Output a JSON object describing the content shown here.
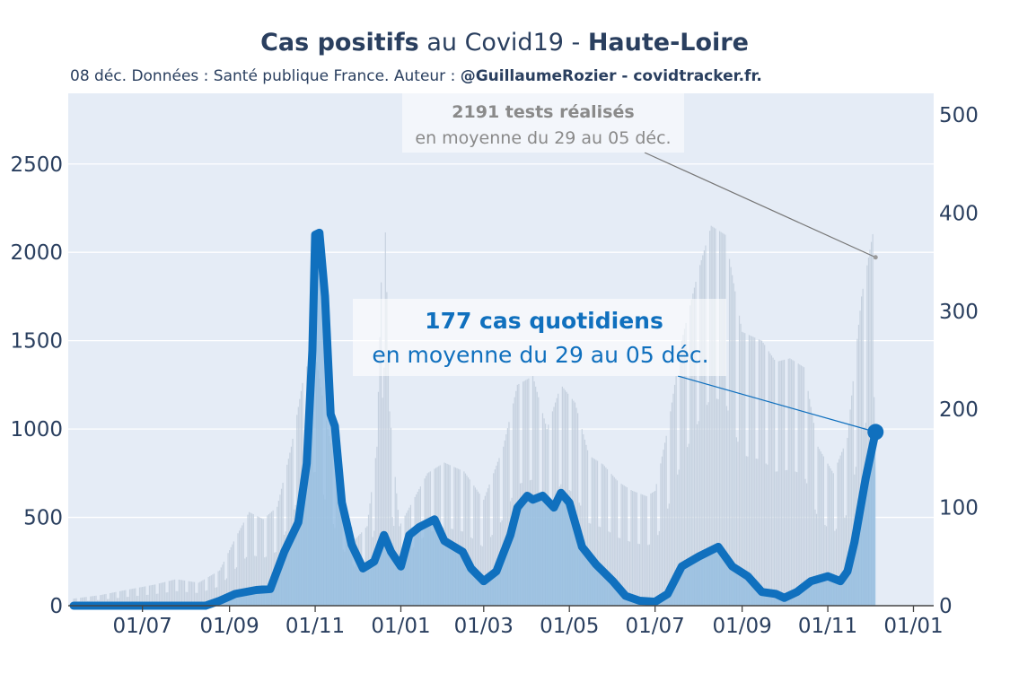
{
  "title": {
    "bold1": "Cas positifs",
    "normal": " au Covid19 - ",
    "bold2": "Haute-Loire"
  },
  "subtitle": {
    "normal": "08 déc. Données : Santé publique France. Auteur : ",
    "bold": "@GuillaumeRozier - covidtracker.fr."
  },
  "annotations": {
    "tests": {
      "line1": "2191 tests réalisés",
      "line2": "en moyenne du 29 au 05 déc."
    },
    "cases": {
      "line1": "177 cas quotidiens",
      "line2": "en moyenne du 29 au 05 déc."
    }
  },
  "colors": {
    "cases": "#1070be",
    "cases_fill": "#8fbbe0",
    "tests": "#c2cedd",
    "plot_bg": "#e5ecf6",
    "grid": "#ffffff"
  },
  "chart_data": {
    "type": "line",
    "x_axis": {
      "tick_labels": [
        "01/07",
        "01/09",
        "01/11",
        "01/01",
        "01/03",
        "01/05",
        "01/07",
        "01/09",
        "01/11",
        "01/01"
      ],
      "tick_dates": [
        "2020-07-01",
        "2020-09-01",
        "2020-11-01",
        "2021-01-01",
        "2021-03-01",
        "2021-05-01",
        "2021-07-01",
        "2021-09-01",
        "2021-11-01",
        "2022-01-01"
      ],
      "range": [
        "2020-05-13",
        "2022-01-09"
      ]
    },
    "y_left": {
      "range": [
        0,
        2900
      ],
      "ticks": [
        0,
        500,
        1000,
        1500,
        2000,
        2500
      ]
    },
    "y_right": {
      "range": [
        0,
        522
      ],
      "ticks": [
        0,
        100,
        200,
        300,
        400,
        500
      ]
    },
    "grid": true,
    "series": [
      {
        "axis": "left",
        "style": "bars",
        "points": [
          [
            "2020-05-13",
            40
          ],
          [
            "2020-06-01",
            60
          ],
          [
            "2020-06-20",
            90
          ],
          [
            "2020-07-10",
            120
          ],
          [
            "2020-07-25",
            150
          ],
          [
            "2020-08-10",
            130
          ],
          [
            "2020-08-25",
            200
          ],
          [
            "2020-09-05",
            380
          ],
          [
            "2020-09-15",
            530
          ],
          [
            "2020-09-25",
            490
          ],
          [
            "2020-10-05",
            560
          ],
          [
            "2020-10-15",
            900
          ],
          [
            "2020-10-25",
            1350
          ],
          [
            "2020-11-02",
            1380
          ],
          [
            "2020-11-10",
            1000
          ],
          [
            "2020-11-20",
            600
          ],
          [
            "2020-11-30",
            380
          ],
          [
            "2020-12-08",
            450
          ],
          [
            "2020-12-15",
            900
          ],
          [
            "2020-12-20",
            2450
          ],
          [
            "2020-12-24",
            1100
          ],
          [
            "2020-12-31",
            450
          ],
          [
            "2021-01-10",
            600
          ],
          [
            "2021-01-20",
            750
          ],
          [
            "2021-02-01",
            810
          ],
          [
            "2021-02-15",
            760
          ],
          [
            "2021-03-01",
            600
          ],
          [
            "2021-03-15",
            900
          ],
          [
            "2021-03-25",
            1250
          ],
          [
            "2021-04-05",
            1300
          ],
          [
            "2021-04-15",
            1000
          ],
          [
            "2021-04-25",
            1250
          ],
          [
            "2021-05-05",
            1150
          ],
          [
            "2021-05-15",
            850
          ],
          [
            "2021-05-25",
            800
          ],
          [
            "2021-06-05",
            700
          ],
          [
            "2021-06-15",
            650
          ],
          [
            "2021-06-25",
            620
          ],
          [
            "2021-07-01",
            650
          ],
          [
            "2021-07-10",
            1000
          ],
          [
            "2021-07-20",
            1500
          ],
          [
            "2021-08-01",
            1900
          ],
          [
            "2021-08-10",
            2150
          ],
          [
            "2021-08-20",
            2100
          ],
          [
            "2021-09-01",
            1550
          ],
          [
            "2021-09-15",
            1500
          ],
          [
            "2021-09-25",
            1380
          ],
          [
            "2021-10-05",
            1400
          ],
          [
            "2021-10-15",
            1350
          ],
          [
            "2021-10-25",
            900
          ],
          [
            "2021-11-05",
            750
          ],
          [
            "2021-11-15",
            950
          ],
          [
            "2021-11-25",
            1750
          ],
          [
            "2021-12-05",
            2191
          ]
        ]
      },
      {
        "axis": "right",
        "style": "line-area",
        "points": [
          [
            "2020-05-13",
            0
          ],
          [
            "2020-08-15",
            0
          ],
          [
            "2020-08-25",
            5
          ],
          [
            "2020-09-05",
            12
          ],
          [
            "2020-09-20",
            16
          ],
          [
            "2020-09-30",
            17
          ],
          [
            "2020-10-10",
            55
          ],
          [
            "2020-10-20",
            85
          ],
          [
            "2020-10-26",
            145
          ],
          [
            "2020-10-30",
            260
          ],
          [
            "2020-11-01",
            378
          ],
          [
            "2020-11-04",
            380
          ],
          [
            "2020-11-08",
            315
          ],
          [
            "2020-11-12",
            195
          ],
          [
            "2020-11-15",
            183
          ],
          [
            "2020-11-20",
            105
          ],
          [
            "2020-11-27",
            62
          ],
          [
            "2020-12-05",
            38
          ],
          [
            "2020-12-13",
            45
          ],
          [
            "2020-12-20",
            72
          ],
          [
            "2020-12-25",
            55
          ],
          [
            "2021-01-01",
            40
          ],
          [
            "2021-01-07",
            72
          ],
          [
            "2021-01-14",
            80
          ],
          [
            "2021-01-25",
            88
          ],
          [
            "2021-02-01",
            66
          ],
          [
            "2021-02-14",
            55
          ],
          [
            "2021-02-20",
            38
          ],
          [
            "2021-03-01",
            25
          ],
          [
            "2021-03-10",
            35
          ],
          [
            "2021-03-20",
            72
          ],
          [
            "2021-03-25",
            100
          ],
          [
            "2021-04-01",
            112
          ],
          [
            "2021-04-05",
            108
          ],
          [
            "2021-04-12",
            112
          ],
          [
            "2021-04-20",
            100
          ],
          [
            "2021-04-25",
            115
          ],
          [
            "2021-05-01",
            105
          ],
          [
            "2021-05-10",
            60
          ],
          [
            "2021-05-20",
            42
          ],
          [
            "2021-06-01",
            25
          ],
          [
            "2021-06-10",
            10
          ],
          [
            "2021-06-20",
            5
          ],
          [
            "2021-07-01",
            4
          ],
          [
            "2021-07-10",
            12
          ],
          [
            "2021-07-20",
            40
          ],
          [
            "2021-08-01",
            50
          ],
          [
            "2021-08-15",
            60
          ],
          [
            "2021-08-25",
            40
          ],
          [
            "2021-09-05",
            30
          ],
          [
            "2021-09-15",
            14
          ],
          [
            "2021-09-25",
            12
          ],
          [
            "2021-10-01",
            8
          ],
          [
            "2021-10-10",
            14
          ],
          [
            "2021-10-20",
            25
          ],
          [
            "2021-11-01",
            30
          ],
          [
            "2021-11-10",
            25
          ],
          [
            "2021-11-15",
            35
          ],
          [
            "2021-11-20",
            65
          ],
          [
            "2021-11-28",
            130
          ],
          [
            "2021-12-05",
            177
          ]
        ]
      }
    ]
  }
}
